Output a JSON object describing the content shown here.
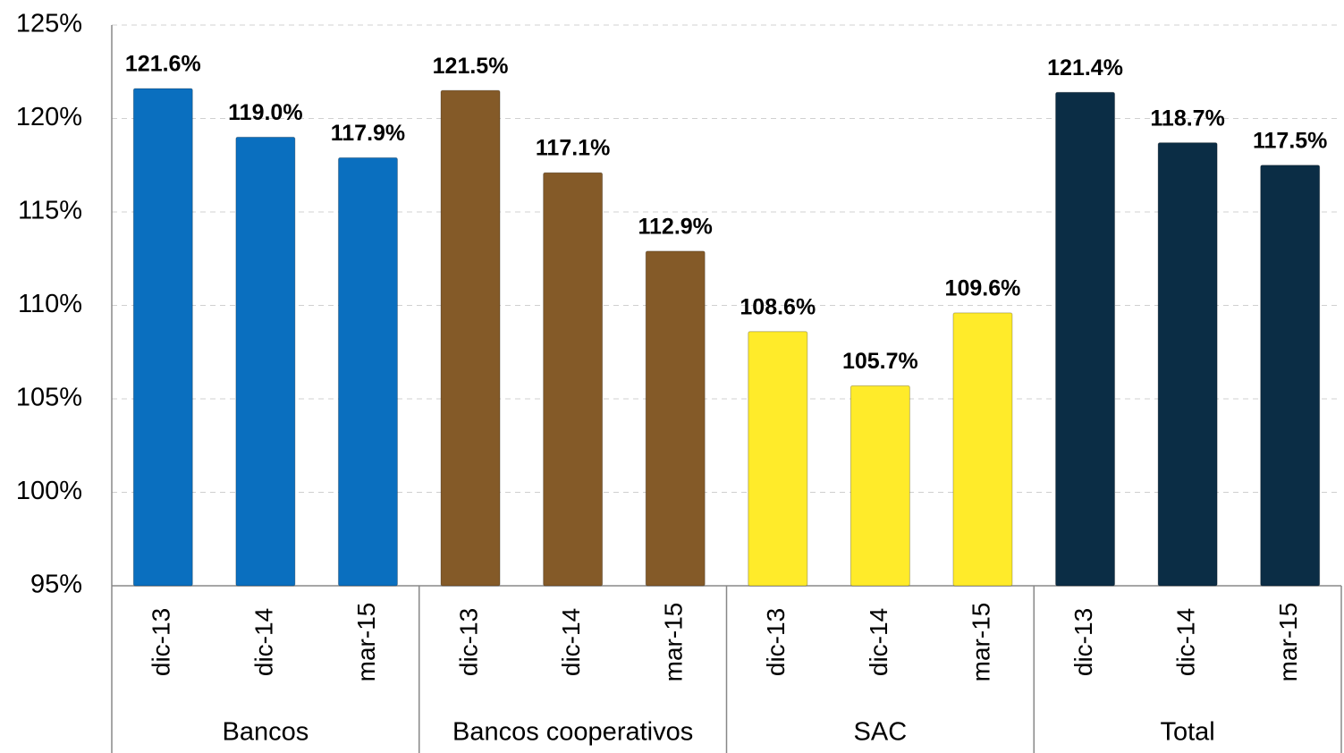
{
  "chart_data": {
    "type": "bar",
    "groups": [
      {
        "name": "Bancos",
        "color": "#0a6fbf",
        "categories": [
          "dic-13",
          "dic-14",
          "mar-15"
        ],
        "values": [
          121.6,
          119.0,
          117.9
        ],
        "value_labels": [
          "121.6%",
          "119.0%",
          "117.9%"
        ]
      },
      {
        "name": "Bancos cooperativos",
        "color": "#845a28",
        "categories": [
          "dic-13",
          "dic-14",
          "mar-15"
        ],
        "values": [
          121.5,
          117.1,
          112.9
        ],
        "value_labels": [
          "121.5%",
          "117.1%",
          "112.9%"
        ]
      },
      {
        "name": "SAC",
        "color": "#ffeb2a",
        "categories": [
          "dic-13",
          "dic-14",
          "mar-15"
        ],
        "values": [
          108.6,
          105.7,
          109.6
        ],
        "value_labels": [
          "108.6%",
          "105.7%",
          "109.6%"
        ]
      },
      {
        "name": "Total",
        "color": "#0b2d45",
        "categories": [
          "dic-13",
          "dic-14",
          "mar-15"
        ],
        "values": [
          121.4,
          118.7,
          117.5
        ],
        "value_labels": [
          "121.4%",
          "118.7%",
          "117.5%"
        ]
      }
    ],
    "ylim": [
      95,
      125
    ],
    "yticks": [
      {
        "value": 95,
        "label": "95%"
      },
      {
        "value": 100,
        "label": "100%"
      },
      {
        "value": 105,
        "label": "105%"
      },
      {
        "value": 110,
        "label": "110%"
      },
      {
        "value": 115,
        "label": "115%"
      },
      {
        "value": 120,
        "label": "120%"
      },
      {
        "value": 125,
        "label": "125%"
      }
    ],
    "grid": true
  }
}
